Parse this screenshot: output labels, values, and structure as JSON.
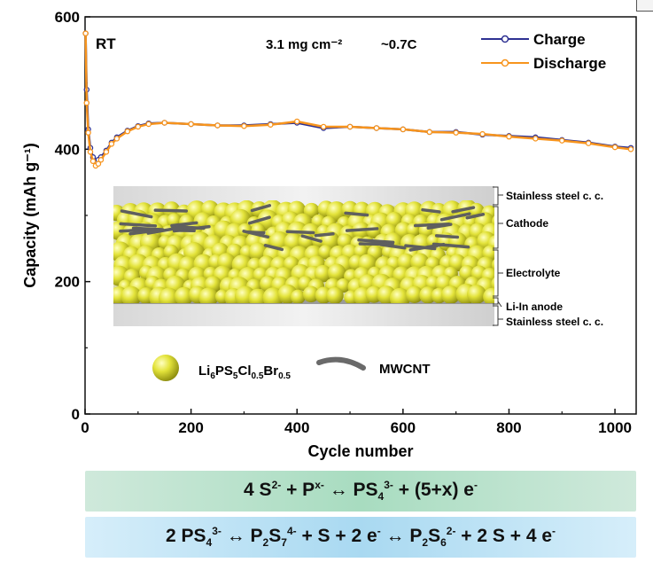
{
  "chart_data": {
    "type": "line",
    "xlabel": "Cycle number",
    "ylabel": "Capacity (mAh g⁻¹)",
    "xlim": [
      0,
      1040
    ],
    "ylim": [
      0,
      600
    ],
    "xticks": [
      0,
      200,
      400,
      600,
      800,
      1000
    ],
    "yticks": [
      0,
      200,
      400,
      600
    ],
    "legend_position": "top-right",
    "annotations": {
      "temp": "RT",
      "loading": "3.1 mg cm⁻²",
      "rate": "~0.7C"
    },
    "series": [
      {
        "name": "Charge",
        "color": "#2e3192",
        "x": [
          1,
          3,
          6,
          10,
          15,
          20,
          25,
          30,
          40,
          50,
          60,
          80,
          100,
          120,
          150,
          200,
          250,
          300,
          350,
          400,
          450,
          500,
          550,
          600,
          650,
          700,
          750,
          800,
          850,
          900,
          950,
          1000,
          1030
        ],
        "y": [
          575,
          490,
          430,
          402,
          388,
          382,
          384,
          388,
          398,
          410,
          418,
          428,
          435,
          439,
          440,
          438,
          436,
          436,
          438,
          440,
          432,
          434,
          432,
          430,
          426,
          426,
          422,
          420,
          418,
          414,
          410,
          404,
          402
        ]
      },
      {
        "name": "Discharge",
        "color": "#f7941d",
        "x": [
          1,
          3,
          6,
          10,
          15,
          20,
          25,
          30,
          40,
          50,
          60,
          80,
          100,
          120,
          150,
          200,
          250,
          300,
          350,
          400,
          450,
          500,
          550,
          600,
          650,
          700,
          750,
          800,
          850,
          900,
          950,
          1000,
          1030
        ],
        "y": [
          575,
          470,
          425,
          396,
          382,
          375,
          378,
          384,
          396,
          408,
          416,
          427,
          434,
          438,
          440,
          438,
          436,
          435,
          437,
          442,
          434,
          434,
          432,
          430,
          426,
          425,
          423,
          419,
          416,
          413,
          409,
          403,
          400
        ]
      }
    ]
  },
  "inset": {
    "layer_labels": [
      "Stainless steel c. c.",
      "Cathode",
      "Electrolyte",
      "Li-In anode",
      "Stainless steel c. c."
    ],
    "legend_particle": {
      "main": "Li",
      "s1": "6",
      "b": "PS",
      "s2": "5",
      "c": "Cl",
      "s3": "0.5",
      "d": "Br",
      "s4": "0.5"
    },
    "legend_cnt": "MWCNT"
  },
  "equations": {
    "eq1": {
      "a": "4 S",
      "a_sup": "2-",
      "b": " + P",
      "b_sup": "x-",
      "arrow": " ↔ ",
      "c": "PS",
      "c_sub": "4",
      "c_sup": "3-",
      "d": " + (5+x) e",
      "d_sup": "-"
    },
    "eq2": {
      "a": "2 PS",
      "a_sub": "4",
      "a_sup": "3-",
      "arrow1": " ↔ ",
      "b": "P",
      "b_sub1": "2",
      "b2": "S",
      "b_sub2": "7",
      "b_sup": "4-",
      "c": " + S + 2 e",
      "c_sup": "-",
      "arrow2": " ↔ ",
      "d": "P",
      "d_sub1": "2",
      "d2": "S",
      "d_sub2": "6",
      "d_sup": "2-",
      "e": " + 2 S + 4 e",
      "e_sup": "-"
    }
  }
}
